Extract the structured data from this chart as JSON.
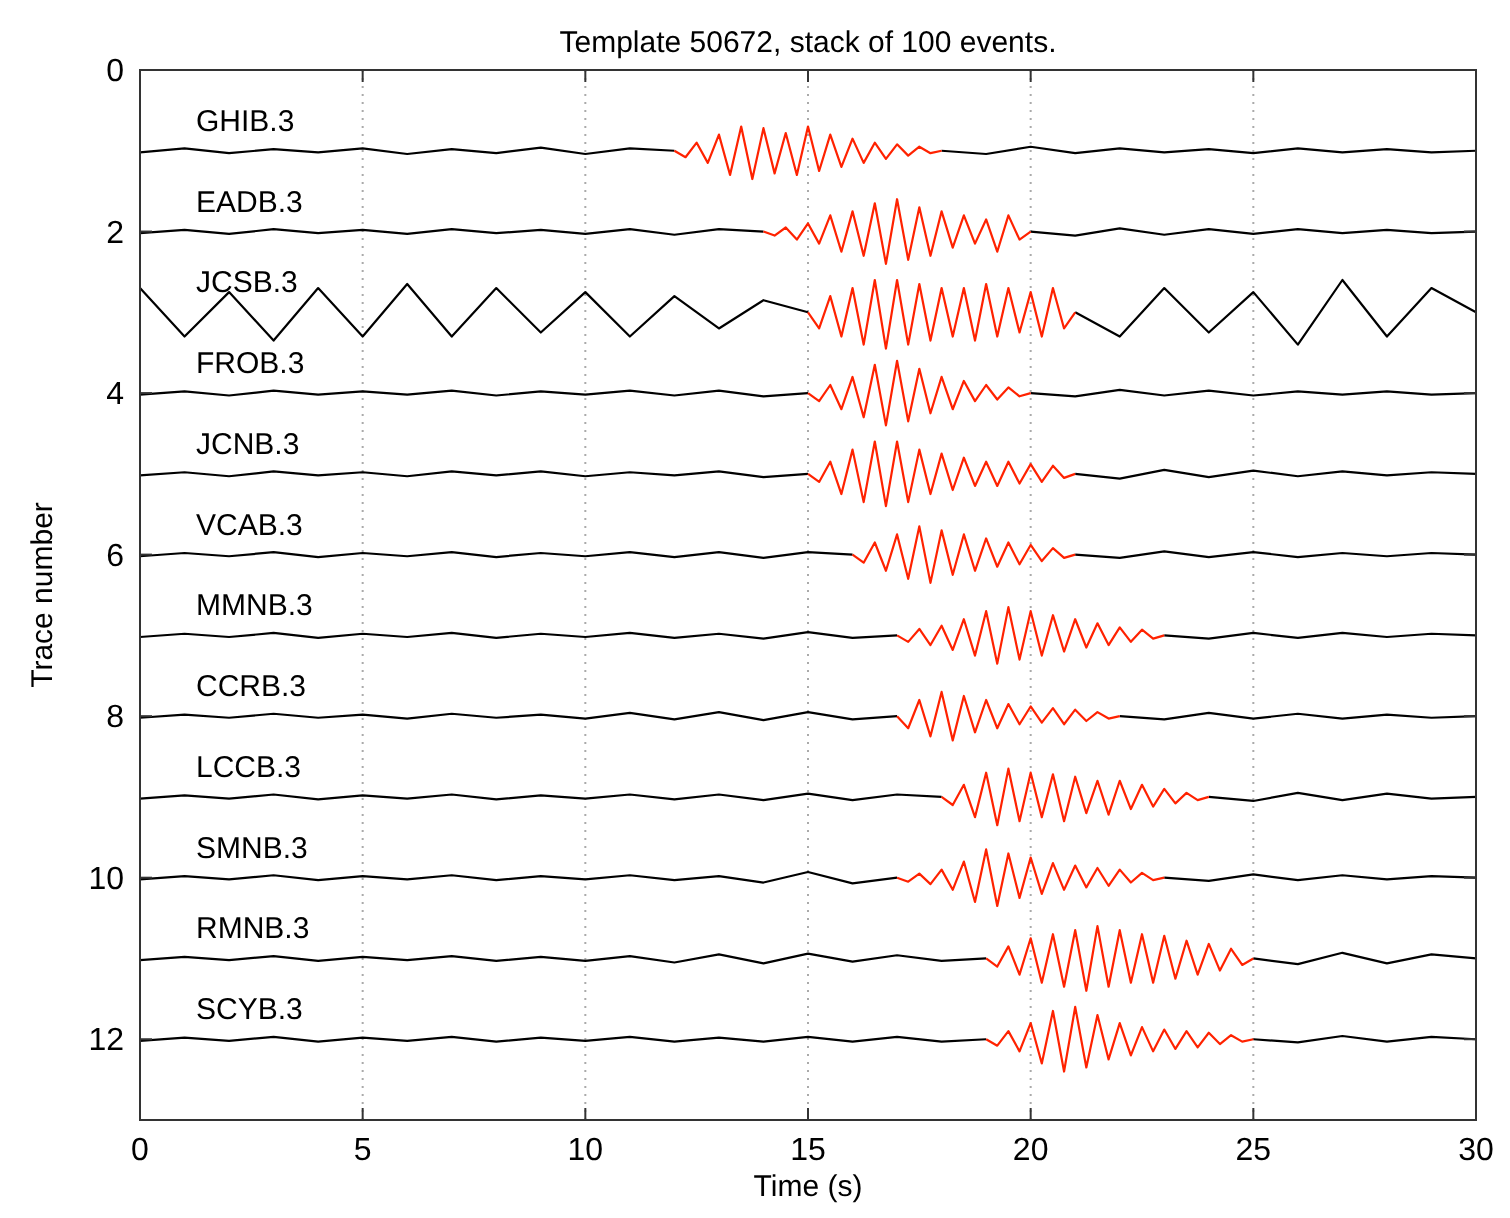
{
  "chart_data": {
    "type": "line",
    "title": "Template 50672, stack of 100 events.",
    "xlabel": "Time (s)",
    "ylabel": "Trace number",
    "xlim": [
      0,
      30
    ],
    "xticks": [
      0,
      5,
      10,
      15,
      20,
      25,
      30
    ],
    "ylim": [
      13,
      0
    ],
    "yticks": [
      0,
      2,
      4,
      6,
      8,
      10,
      12
    ],
    "grid": "x",
    "marker": "none",
    "line_style": "solid",
    "x": [
      0,
      1,
      2,
      3,
      4,
      5,
      6,
      7,
      8,
      9,
      10,
      11,
      12,
      13,
      14,
      15,
      16,
      17,
      18,
      19,
      20,
      21,
      22,
      23,
      24,
      25,
      26,
      27,
      28,
      29,
      30
    ],
    "series": [
      {
        "name": "GHIB.3",
        "color": "#000000",
        "values": [
          1.02,
          0.97,
          1.03,
          0.98,
          1.02,
          0.97,
          1.04,
          0.98,
          1.03,
          0.96,
          1.04,
          0.97,
          1.0,
          null,
          null,
          null,
          null,
          null,
          1.0,
          1.04,
          0.95,
          1.03,
          0.97,
          1.02,
          0.98,
          1.03,
          0.97,
          1.02,
          0.98,
          1.02,
          1.0
        ]
      },
      {
        "color": "#ff2200",
        "x": [
          12,
          12.25,
          12.5,
          12.75,
          13,
          13.25,
          13.5,
          13.75,
          14,
          14.25,
          14.5,
          14.75,
          15,
          15.25,
          15.5,
          15.75,
          16,
          16.25,
          16.5,
          16.75,
          17,
          17.25,
          17.5,
          17.75,
          18
        ],
        "values": [
          1.0,
          1.08,
          0.9,
          1.15,
          0.8,
          1.3,
          0.7,
          1.35,
          0.72,
          1.28,
          0.78,
          1.3,
          0.7,
          1.25,
          0.8,
          1.2,
          0.85,
          1.15,
          0.9,
          1.1,
          0.92,
          1.06,
          0.95,
          1.03,
          1.0
        ]
      },
      {
        "name": "EADB.3",
        "color": "#000000",
        "values": [
          2.02,
          1.98,
          2.03,
          1.97,
          2.02,
          1.98,
          2.03,
          1.97,
          2.02,
          1.98,
          2.03,
          1.97,
          2.04,
          1.97,
          2.0,
          null,
          null,
          null,
          null,
          null,
          2.0,
          2.05,
          1.96,
          2.04,
          1.97,
          2.03,
          1.97,
          2.02,
          1.98,
          2.02,
          2.0
        ]
      },
      {
        "color": "#ff2200",
        "x": [
          14,
          14.25,
          14.5,
          14.75,
          15,
          15.25,
          15.5,
          15.75,
          16,
          16.25,
          16.5,
          16.75,
          17,
          17.25,
          17.5,
          17.75,
          18,
          18.25,
          18.5,
          18.75,
          19,
          19.25,
          19.5,
          19.75,
          20
        ],
        "values": [
          2.0,
          2.05,
          1.95,
          2.1,
          1.9,
          2.15,
          1.8,
          2.25,
          1.75,
          2.3,
          1.65,
          2.4,
          1.6,
          2.35,
          1.7,
          2.3,
          1.75,
          2.2,
          1.8,
          2.15,
          1.85,
          2.25,
          1.8,
          2.1,
          2.0
        ]
      },
      {
        "name": "JCSB.3",
        "color": "#000000",
        "values": [
          2.7,
          3.3,
          2.75,
          3.35,
          2.7,
          3.3,
          2.65,
          3.3,
          2.7,
          3.25,
          2.75,
          3.3,
          2.8,
          3.2,
          2.85,
          3.0,
          null,
          null,
          null,
          null,
          null,
          3.0,
          3.3,
          2.7,
          3.25,
          2.75,
          3.4,
          2.6,
          3.3,
          2.7,
          3.0
        ]
      },
      {
        "color": "#ff2200",
        "x": [
          15,
          15.25,
          15.5,
          15.75,
          16,
          16.25,
          16.5,
          16.75,
          17,
          17.25,
          17.5,
          17.75,
          18,
          18.25,
          18.5,
          18.75,
          19,
          19.25,
          19.5,
          19.75,
          20,
          20.25,
          20.5,
          20.75,
          21
        ],
        "values": [
          3.0,
          3.2,
          2.8,
          3.3,
          2.7,
          3.4,
          2.6,
          3.45,
          2.6,
          3.4,
          2.65,
          3.35,
          2.7,
          3.3,
          2.7,
          3.35,
          2.65,
          3.3,
          2.7,
          3.25,
          2.75,
          3.3,
          2.7,
          3.2,
          3.0
        ]
      },
      {
        "name": "FROB.3",
        "color": "#000000",
        "values": [
          4.02,
          3.98,
          4.03,
          3.97,
          4.02,
          3.98,
          4.02,
          3.97,
          4.03,
          3.98,
          4.02,
          3.97,
          4.03,
          3.97,
          4.04,
          4.0,
          null,
          null,
          null,
          null,
          4.0,
          4.04,
          3.96,
          4.03,
          3.97,
          4.03,
          3.98,
          4.02,
          3.98,
          4.02,
          4.0
        ]
      },
      {
        "color": "#ff2200",
        "x": [
          15,
          15.25,
          15.5,
          15.75,
          16,
          16.25,
          16.5,
          16.75,
          17,
          17.25,
          17.5,
          17.75,
          18,
          18.25,
          18.5,
          18.75,
          19,
          19.25,
          19.5,
          19.75,
          20
        ],
        "values": [
          4.0,
          4.1,
          3.9,
          4.2,
          3.8,
          4.3,
          3.65,
          4.4,
          3.6,
          4.35,
          3.7,
          4.25,
          3.8,
          4.2,
          3.85,
          4.1,
          3.9,
          4.08,
          3.93,
          4.04,
          4.0
        ]
      },
      {
        "name": "JCNB.3",
        "color": "#000000",
        "values": [
          5.02,
          4.98,
          5.03,
          4.97,
          5.02,
          4.98,
          5.03,
          4.97,
          5.02,
          4.97,
          5.03,
          4.98,
          5.02,
          4.97,
          5.04,
          5.0,
          null,
          null,
          null,
          null,
          null,
          5.0,
          5.06,
          4.95,
          5.04,
          4.96,
          5.03,
          4.97,
          5.02,
          4.98,
          5.0
        ]
      },
      {
        "color": "#ff2200",
        "x": [
          15,
          15.25,
          15.5,
          15.75,
          16,
          16.25,
          16.5,
          16.75,
          17,
          17.25,
          17.5,
          17.75,
          18,
          18.25,
          18.5,
          18.75,
          19,
          19.25,
          19.5,
          19.75,
          20,
          20.25,
          20.5,
          20.75,
          21
        ],
        "values": [
          5.0,
          5.1,
          4.85,
          5.25,
          4.7,
          5.35,
          4.6,
          5.4,
          4.6,
          5.35,
          4.7,
          5.25,
          4.75,
          5.2,
          4.8,
          5.15,
          4.85,
          5.15,
          4.85,
          5.12,
          4.88,
          5.1,
          4.9,
          5.05,
          5.0
        ]
      },
      {
        "name": "VCAB.3",
        "color": "#000000",
        "values": [
          6.02,
          5.98,
          6.02,
          5.97,
          6.03,
          5.98,
          6.02,
          5.97,
          6.03,
          5.98,
          6.02,
          5.97,
          6.03,
          5.97,
          6.04,
          5.97,
          6.0,
          null,
          null,
          null,
          null,
          6.0,
          6.04,
          5.96,
          6.03,
          5.97,
          6.03,
          5.98,
          6.02,
          5.98,
          6.0
        ]
      },
      {
        "color": "#ff2200",
        "x": [
          16,
          16.25,
          16.5,
          16.75,
          17,
          17.25,
          17.5,
          17.75,
          18,
          18.25,
          18.5,
          18.75,
          19,
          19.25,
          19.5,
          19.75,
          20,
          20.25,
          20.5,
          20.75,
          21
        ],
        "values": [
          6.0,
          6.1,
          5.85,
          6.2,
          5.75,
          6.3,
          5.65,
          6.35,
          5.7,
          6.25,
          5.75,
          6.2,
          5.8,
          6.15,
          5.85,
          6.12,
          5.88,
          6.08,
          5.92,
          6.04,
          6.0
        ]
      },
      {
        "name": "MMNB.3",
        "color": "#000000",
        "values": [
          7.02,
          6.98,
          7.02,
          6.97,
          7.03,
          6.98,
          7.02,
          6.97,
          7.03,
          6.98,
          7.02,
          6.97,
          7.03,
          6.98,
          7.04,
          6.96,
          7.03,
          7.0,
          null,
          null,
          null,
          null,
          null,
          7.0,
          7.04,
          6.97,
          7.03,
          6.97,
          7.02,
          6.98,
          7.0
        ]
      },
      {
        "color": "#ff2200",
        "x": [
          17,
          17.25,
          17.5,
          17.75,
          18,
          18.25,
          18.5,
          18.75,
          19,
          19.25,
          19.5,
          19.75,
          20,
          20.25,
          20.5,
          20.75,
          21,
          21.25,
          21.5,
          21.75,
          22,
          22.25,
          22.5,
          22.75,
          23
        ],
        "values": [
          7.0,
          7.08,
          6.92,
          7.12,
          6.88,
          7.18,
          6.8,
          7.25,
          6.7,
          7.35,
          6.65,
          7.3,
          6.7,
          7.25,
          6.75,
          7.2,
          6.8,
          7.15,
          6.85,
          7.12,
          6.9,
          7.08,
          6.93,
          7.04,
          7.0
        ]
      },
      {
        "name": "CCRB.3",
        "color": "#000000",
        "values": [
          8.02,
          7.98,
          8.02,
          7.97,
          8.02,
          7.98,
          8.03,
          7.97,
          8.02,
          7.98,
          8.03,
          7.96,
          8.04,
          7.95,
          8.05,
          7.95,
          8.04,
          8.0,
          null,
          null,
          null,
          null,
          8.0,
          8.04,
          7.96,
          8.03,
          7.97,
          8.03,
          7.98,
          8.02,
          8.0
        ]
      },
      {
        "color": "#ff2200",
        "x": [
          17,
          17.25,
          17.5,
          17.75,
          18,
          18.25,
          18.5,
          18.75,
          19,
          19.25,
          19.5,
          19.75,
          20,
          20.25,
          20.5,
          20.75,
          21,
          21.25,
          21.5,
          21.75,
          22
        ],
        "values": [
          8.0,
          8.15,
          7.8,
          8.25,
          7.7,
          8.3,
          7.75,
          8.2,
          7.8,
          8.15,
          7.85,
          8.1,
          7.88,
          8.08,
          7.9,
          8.1,
          7.92,
          8.06,
          7.95,
          8.03,
          8.0
        ]
      },
      {
        "name": "LCCB.3",
        "color": "#000000",
        "values": [
          9.02,
          8.98,
          9.02,
          8.97,
          9.03,
          8.98,
          9.02,
          8.97,
          9.03,
          8.98,
          9.02,
          8.97,
          9.03,
          8.97,
          9.04,
          8.96,
          9.04,
          8.97,
          9.0,
          null,
          null,
          null,
          null,
          null,
          9.0,
          9.05,
          8.95,
          9.04,
          8.96,
          9.02,
          9.0
        ]
      },
      {
        "color": "#ff2200",
        "x": [
          18,
          18.25,
          18.5,
          18.75,
          19,
          19.25,
          19.5,
          19.75,
          20,
          20.25,
          20.5,
          20.75,
          21,
          21.25,
          21.5,
          21.75,
          22,
          22.25,
          22.5,
          22.75,
          23,
          23.25,
          23.5,
          23.75,
          24
        ],
        "values": [
          9.0,
          9.1,
          8.85,
          9.25,
          8.7,
          9.35,
          8.65,
          9.3,
          8.7,
          9.25,
          8.72,
          9.3,
          8.75,
          9.2,
          8.8,
          9.22,
          8.8,
          9.15,
          8.85,
          9.12,
          8.9,
          9.08,
          8.95,
          9.04,
          9.0
        ]
      },
      {
        "name": "SMNB.3",
        "color": "#000000",
        "values": [
          10.02,
          9.98,
          10.02,
          9.97,
          10.03,
          9.98,
          10.02,
          9.97,
          10.03,
          9.98,
          10.02,
          9.97,
          10.03,
          9.98,
          10.06,
          9.93,
          10.07,
          10.0,
          null,
          null,
          null,
          null,
          null,
          10.0,
          10.04,
          9.96,
          10.03,
          9.97,
          10.02,
          9.98,
          10.0
        ]
      },
      {
        "color": "#ff2200",
        "x": [
          17,
          17.25,
          17.5,
          17.75,
          18,
          18.25,
          18.5,
          18.75,
          19,
          19.25,
          19.5,
          19.75,
          20,
          20.25,
          20.5,
          20.75,
          21,
          21.25,
          21.5,
          21.75,
          22,
          22.25,
          22.5,
          22.75,
          23
        ],
        "values": [
          10.0,
          10.05,
          9.95,
          10.08,
          9.9,
          10.15,
          9.8,
          10.3,
          9.65,
          10.35,
          9.7,
          10.25,
          9.75,
          10.2,
          9.82,
          10.15,
          9.85,
          10.12,
          9.88,
          10.1,
          9.9,
          10.06,
          9.94,
          10.03,
          10.0
        ]
      },
      {
        "name": "RMNB.3",
        "color": "#000000",
        "values": [
          11.02,
          10.98,
          11.02,
          10.97,
          11.03,
          10.98,
          11.02,
          10.97,
          11.03,
          10.98,
          11.03,
          10.97,
          11.05,
          10.95,
          11.06,
          10.94,
          11.04,
          10.96,
          11.03,
          11.0,
          null,
          null,
          null,
          null,
          null,
          11.0,
          11.07,
          10.93,
          11.06,
          10.95,
          11.0
        ]
      },
      {
        "color": "#ff2200",
        "x": [
          19,
          19.25,
          19.5,
          19.75,
          20,
          20.25,
          20.5,
          20.75,
          21,
          21.25,
          21.5,
          21.75,
          22,
          22.25,
          22.5,
          22.75,
          23,
          23.25,
          23.5,
          23.75,
          24,
          24.25,
          24.5,
          24.75,
          25
        ],
        "values": [
          11.0,
          11.1,
          10.85,
          11.2,
          10.75,
          11.3,
          10.7,
          11.35,
          10.65,
          11.4,
          10.6,
          11.35,
          10.65,
          11.3,
          10.7,
          11.3,
          10.72,
          11.25,
          10.78,
          11.2,
          10.82,
          11.15,
          10.88,
          11.08,
          11.0
        ]
      },
      {
        "name": "SCYB.3",
        "color": "#000000",
        "values": [
          12.02,
          11.98,
          12.02,
          11.97,
          12.03,
          11.98,
          12.02,
          11.97,
          12.03,
          11.98,
          12.02,
          11.97,
          12.03,
          11.98,
          12.03,
          11.97,
          12.03,
          11.97,
          12.03,
          12.0,
          null,
          null,
          null,
          null,
          null,
          12.0,
          12.04,
          11.96,
          12.03,
          11.97,
          12.0
        ]
      },
      {
        "color": "#ff2200",
        "x": [
          19,
          19.25,
          19.5,
          19.75,
          20,
          20.25,
          20.5,
          20.75,
          21,
          21.25,
          21.5,
          21.75,
          22,
          22.25,
          22.5,
          22.75,
          23,
          23.25,
          23.5,
          23.75,
          24,
          24.25,
          24.5,
          24.75,
          25
        ],
        "values": [
          12.0,
          12.08,
          11.9,
          12.15,
          11.8,
          12.3,
          11.65,
          12.4,
          11.6,
          12.35,
          11.7,
          12.25,
          11.8,
          12.2,
          11.85,
          12.15,
          11.88,
          12.12,
          11.9,
          12.1,
          11.92,
          12.06,
          11.95,
          12.03,
          12.0
        ]
      }
    ]
  }
}
